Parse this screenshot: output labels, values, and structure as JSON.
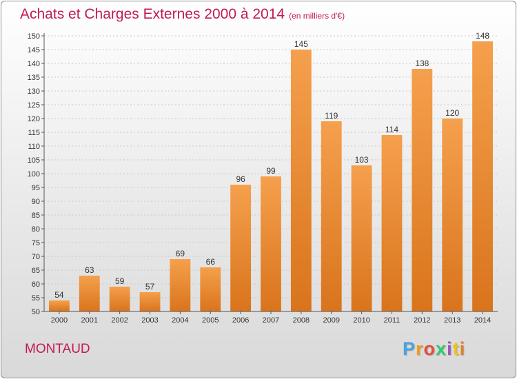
{
  "chart_data": {
    "type": "bar",
    "title": "Achats et Charges Externes 2000 à 2014",
    "subtitle": "(en milliers d'€)",
    "categories": [
      "2000",
      "2001",
      "2002",
      "2003",
      "2004",
      "2005",
      "2006",
      "2007",
      "2008",
      "2009",
      "2010",
      "2011",
      "2012",
      "2013",
      "2014"
    ],
    "values": [
      54,
      63,
      59,
      57,
      69,
      66,
      96,
      99,
      145,
      119,
      103,
      114,
      138,
      120,
      148
    ],
    "ylim": [
      50,
      150
    ],
    "yticks": [
      50,
      55,
      60,
      65,
      70,
      75,
      80,
      85,
      90,
      95,
      100,
      105,
      110,
      115,
      120,
      125,
      130,
      135,
      140,
      145,
      150
    ],
    "grid": "horizontal dashed",
    "legend": "none",
    "bar_color_top": "#f5a04d",
    "bar_color_bottom": "#d9741c",
    "title_color": "#c21b4f"
  },
  "footer": {
    "commune": "MONTAUD",
    "logo_letters": [
      "P",
      "r",
      "o",
      "x",
      "i",
      "t",
      "i"
    ],
    "logo_colors": [
      "#4aa3df",
      "#f39c12",
      "#e74c3c",
      "#2ecc71",
      "#9b59b6",
      "#f1c40f",
      "#e67e22"
    ]
  }
}
